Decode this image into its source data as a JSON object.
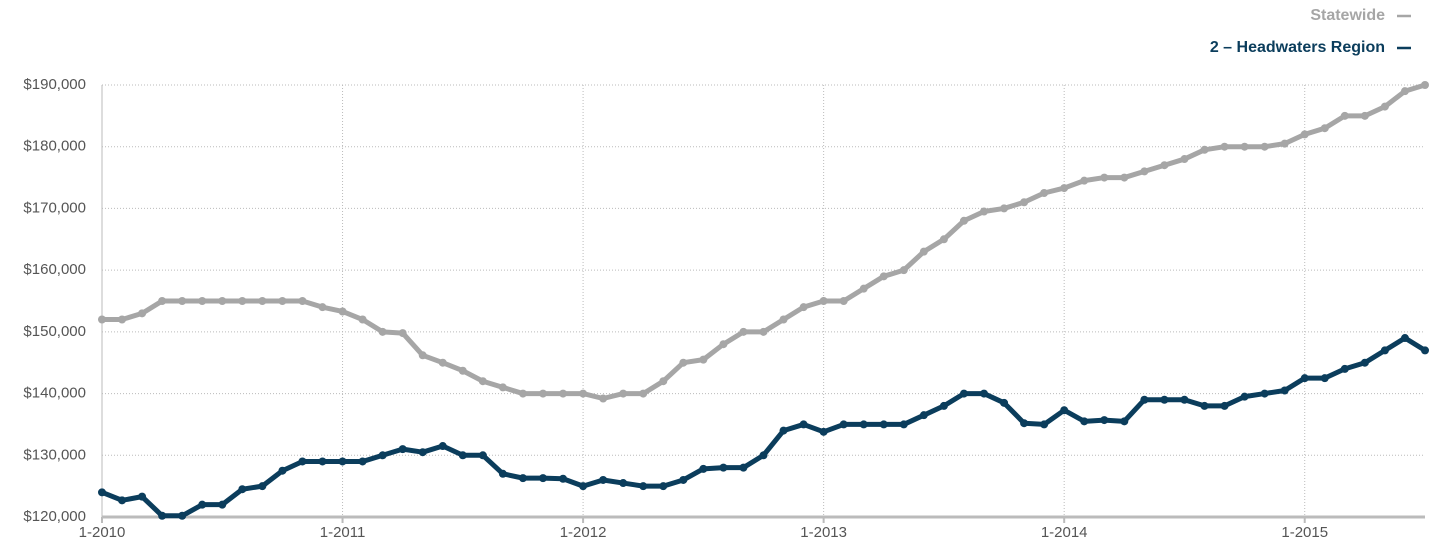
{
  "chart_data": {
    "type": "line",
    "categories": [
      "1-2010",
      null,
      null,
      null,
      null,
      null,
      null,
      null,
      null,
      null,
      null,
      null,
      "1-2011",
      null,
      null,
      null,
      null,
      null,
      null,
      null,
      null,
      null,
      null,
      null,
      "1-2012",
      null,
      null,
      null,
      null,
      null,
      null,
      null,
      null,
      null,
      null,
      null,
      "1-2013",
      null,
      null,
      null,
      null,
      null,
      null,
      null,
      null,
      null,
      null,
      null,
      "1-2014",
      null,
      null,
      null,
      null,
      null,
      null,
      null,
      null,
      null,
      null,
      null,
      "1-2015",
      null,
      null,
      null,
      null,
      null,
      null
    ],
    "series": [
      {
        "name": "Statewide",
        "color": "#a6a6a6",
        "values": [
          152000,
          152000,
          153000,
          155000,
          155000,
          155000,
          155000,
          155000,
          155000,
          155000,
          155000,
          154000,
          153300,
          152000,
          150000,
          149800,
          146200,
          145000,
          143700,
          142000,
          141000,
          140000,
          140000,
          140000,
          140000,
          139200,
          140000,
          140000,
          142000,
          145000,
          145500,
          148000,
          150000,
          150000,
          152000,
          154000,
          155000,
          155000,
          157000,
          159000,
          160000,
          163000,
          165000,
          168000,
          169500,
          170000,
          171000,
          172500,
          173300,
          174500,
          175000,
          175000,
          176000,
          177000,
          178000,
          179500,
          180000,
          180000,
          180000,
          180500,
          182000,
          183000,
          185000,
          185000,
          186500,
          189000,
          190000
        ]
      },
      {
        "name": "2 – Headwaters Region",
        "color": "#0b3d5c",
        "values": [
          124000,
          122700,
          123300,
          120200,
          120200,
          122000,
          122000,
          124500,
          125000,
          127500,
          129000,
          129000,
          129000,
          129000,
          130000,
          131000,
          130500,
          131500,
          130000,
          130000,
          127000,
          126300,
          126300,
          126200,
          125000,
          126000,
          125500,
          125000,
          125000,
          126000,
          127800,
          128000,
          128000,
          130000,
          134000,
          135000,
          133800,
          135000,
          135000,
          135000,
          135000,
          136500,
          138000,
          140000,
          140000,
          138500,
          135200,
          135000,
          137300,
          135500,
          135700,
          135500,
          139000,
          139000,
          139000,
          138000,
          138000,
          139500,
          140000,
          140500,
          142500,
          142500,
          144000,
          145000,
          147000,
          149000,
          147000
        ]
      }
    ],
    "ylim": [
      120000,
      190000
    ],
    "yticks": [
      {
        "value": 120000,
        "label": "$120,000"
      },
      {
        "value": 130000,
        "label": "$130,000"
      },
      {
        "value": 140000,
        "label": "$140,000"
      },
      {
        "value": 150000,
        "label": "$150,000"
      },
      {
        "value": 160000,
        "label": "$160,000"
      },
      {
        "value": 170000,
        "label": "$170,000"
      },
      {
        "value": 180000,
        "label": "$180,000"
      },
      {
        "value": 190000,
        "label": "$190,000"
      }
    ],
    "grid": true,
    "legend": "top-right"
  }
}
